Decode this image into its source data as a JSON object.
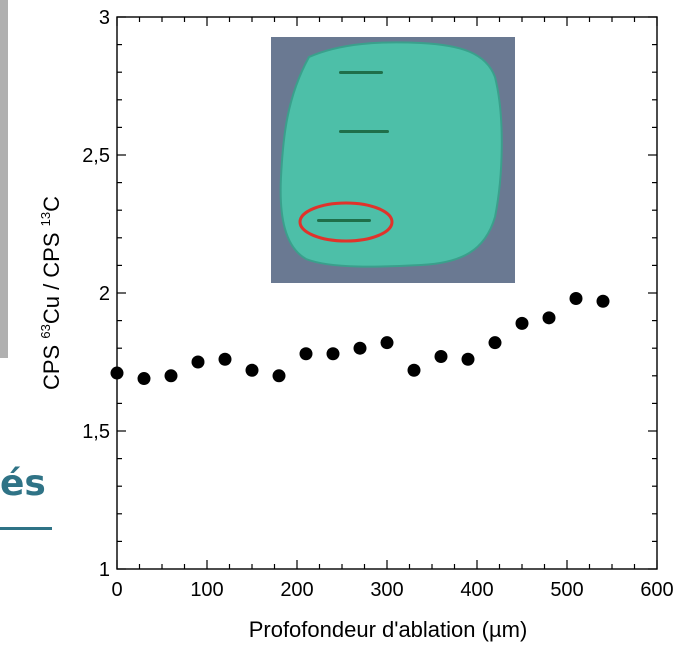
{
  "background_fragment": {
    "text": "és",
    "color": "#2f7386"
  },
  "chart_data": {
    "type": "scatter",
    "title": "",
    "xlabel": "Profofondeur d'ablation (µm)",
    "ylabel": "CPS 63Cu / CPS 13C",
    "ylabel_parts": {
      "p1": "CPS ",
      "s1": "63",
      "p2": "Cu / CPS ",
      "s2": "13",
      "p3": "C"
    },
    "xlim": [
      0,
      600
    ],
    "ylim": [
      1,
      3
    ],
    "xticks": [
      0,
      100,
      200,
      300,
      400,
      500,
      600
    ],
    "yticks": [
      1,
      1.5,
      2,
      2.5,
      3
    ],
    "xtick_labels": [
      "0",
      "100",
      "200",
      "300",
      "400",
      "500",
      "600"
    ],
    "ytick_labels": [
      "1",
      "1,5",
      "2",
      "2,5",
      "3"
    ],
    "grid": false,
    "marker_color": "#000000",
    "series": [
      {
        "x": [
          0,
          30,
          60,
          90,
          120,
          150,
          180,
          210,
          240,
          270,
          300,
          330,
          360,
          390,
          420,
          450,
          480,
          510,
          540
        ],
        "y": [
          1.71,
          1.69,
          1.7,
          1.75,
          1.76,
          1.72,
          1.7,
          1.78,
          1.78,
          1.8,
          1.82,
          1.72,
          1.77,
          1.76,
          1.82,
          1.89,
          1.91,
          1.98,
          1.97
        ]
      }
    ]
  },
  "inset_photo": {
    "background": "#6a7992",
    "sample_color": "#4dbfa8",
    "sample_edge": "#3aa08c",
    "scar_color": "#1f6f4a",
    "highlight_color": "#e0332b"
  }
}
